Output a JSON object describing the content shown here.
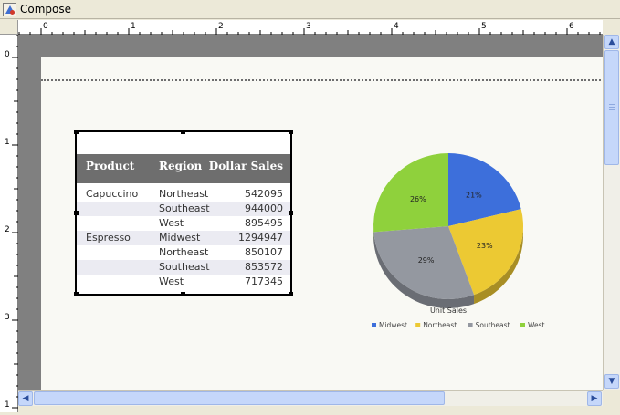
{
  "window": {
    "title": "Compose"
  },
  "rulers": {
    "horizontal_labels": [
      "0",
      "1",
      "2",
      "3",
      "4",
      "5",
      "6"
    ],
    "vertical_labels": [
      "0",
      "1",
      "2",
      "3",
      "1"
    ]
  },
  "report_table": {
    "headers": {
      "product": "Product",
      "region": "Region",
      "sales": "Dollar Sales"
    },
    "rows": [
      {
        "product": "Capuccino",
        "region": "Northeast",
        "sales": "542095"
      },
      {
        "product": "",
        "region": "Southeast",
        "sales": "944000"
      },
      {
        "product": "",
        "region": "West",
        "sales": "895495"
      },
      {
        "product": "Espresso",
        "region": "Midwest",
        "sales": "1294947"
      },
      {
        "product": "",
        "region": "Northeast",
        "sales": "850107"
      },
      {
        "product": "",
        "region": "Southeast",
        "sales": "853572"
      },
      {
        "product": "",
        "region": "West",
        "sales": "717345"
      }
    ]
  },
  "chart_data": {
    "type": "pie",
    "title": "Unit Sales",
    "legend_position": "bottom",
    "categories": [
      "Midwest",
      "Northeast",
      "Southeast",
      "West"
    ],
    "values": [
      21,
      23,
      29,
      26
    ],
    "labels": [
      "21%",
      "23%",
      "29%",
      "26%"
    ],
    "colors": [
      "#3d6fdb",
      "#ecc933",
      "#9498a0",
      "#8fd13c"
    ],
    "side_colors": [
      "#2b4fa0",
      "#a88e24",
      "#6a6d74",
      "#669a2a"
    ]
  }
}
